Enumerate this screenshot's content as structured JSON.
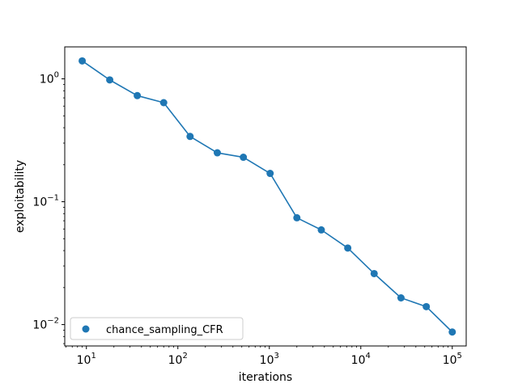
{
  "chart_data": {
    "type": "line",
    "title": "",
    "xlabel": "iterations",
    "ylabel": "exploitability",
    "xscale": "log",
    "yscale": "log",
    "xlim": [
      5.8,
      142000
    ],
    "ylim": [
      0.0067,
      1.82
    ],
    "grid": false,
    "legend": {
      "placement": "lower-left"
    },
    "x_ticks": [
      {
        "base": "10",
        "exp": "1"
      },
      {
        "base": "10",
        "exp": "2"
      },
      {
        "base": "10",
        "exp": "3"
      },
      {
        "base": "10",
        "exp": "4"
      },
      {
        "base": "10",
        "exp": "5"
      }
    ],
    "y_ticks": [
      {
        "base": "10",
        "exp": "0"
      },
      {
        "base": "10",
        "exp": "−1"
      },
      {
        "base": "10",
        "exp": "−2"
      }
    ],
    "series": [
      {
        "name": "chance_sampling_CFR",
        "color": "#1f77b4",
        "marker": "circle",
        "x": [
          9,
          18,
          36,
          70,
          136,
          270,
          520,
          1020,
          2000,
          3700,
          7200,
          14000,
          27500,
          52000,
          100000
        ],
        "y": [
          1.4,
          0.98,
          0.73,
          0.64,
          0.34,
          0.25,
          0.23,
          0.17,
          0.074,
          0.059,
          0.042,
          0.026,
          0.0165,
          0.014,
          0.0087
        ]
      }
    ]
  }
}
